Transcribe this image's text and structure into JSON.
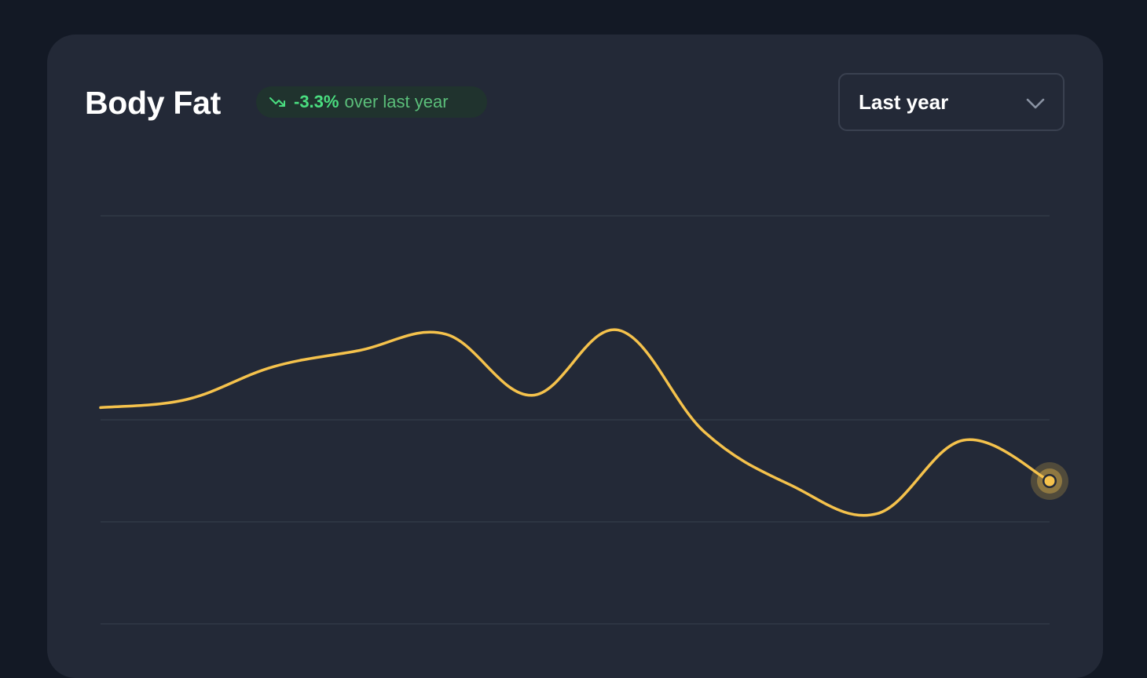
{
  "card": {
    "title": "Body Fat",
    "change": {
      "icon": "trend-down-icon",
      "value": "-3.3%",
      "suffix": "over last year",
      "color": "#4ade80"
    },
    "period_select": {
      "selected": "Last year",
      "icon": "chevron-down-icon"
    }
  },
  "chart_data": {
    "type": "line",
    "title": "",
    "xlabel": "",
    "ylabel": "",
    "line_color": "#f5c24c",
    "grid": true,
    "series": [
      {
        "values": [
          53,
          55,
          63,
          67,
          71,
          56,
          72,
          47,
          34,
          27,
          45,
          35
        ]
      }
    ],
    "gridlines": [
      100,
      50,
      25,
      0
    ],
    "ylim": [
      0,
      100
    ],
    "highlight_last_point": true
  }
}
